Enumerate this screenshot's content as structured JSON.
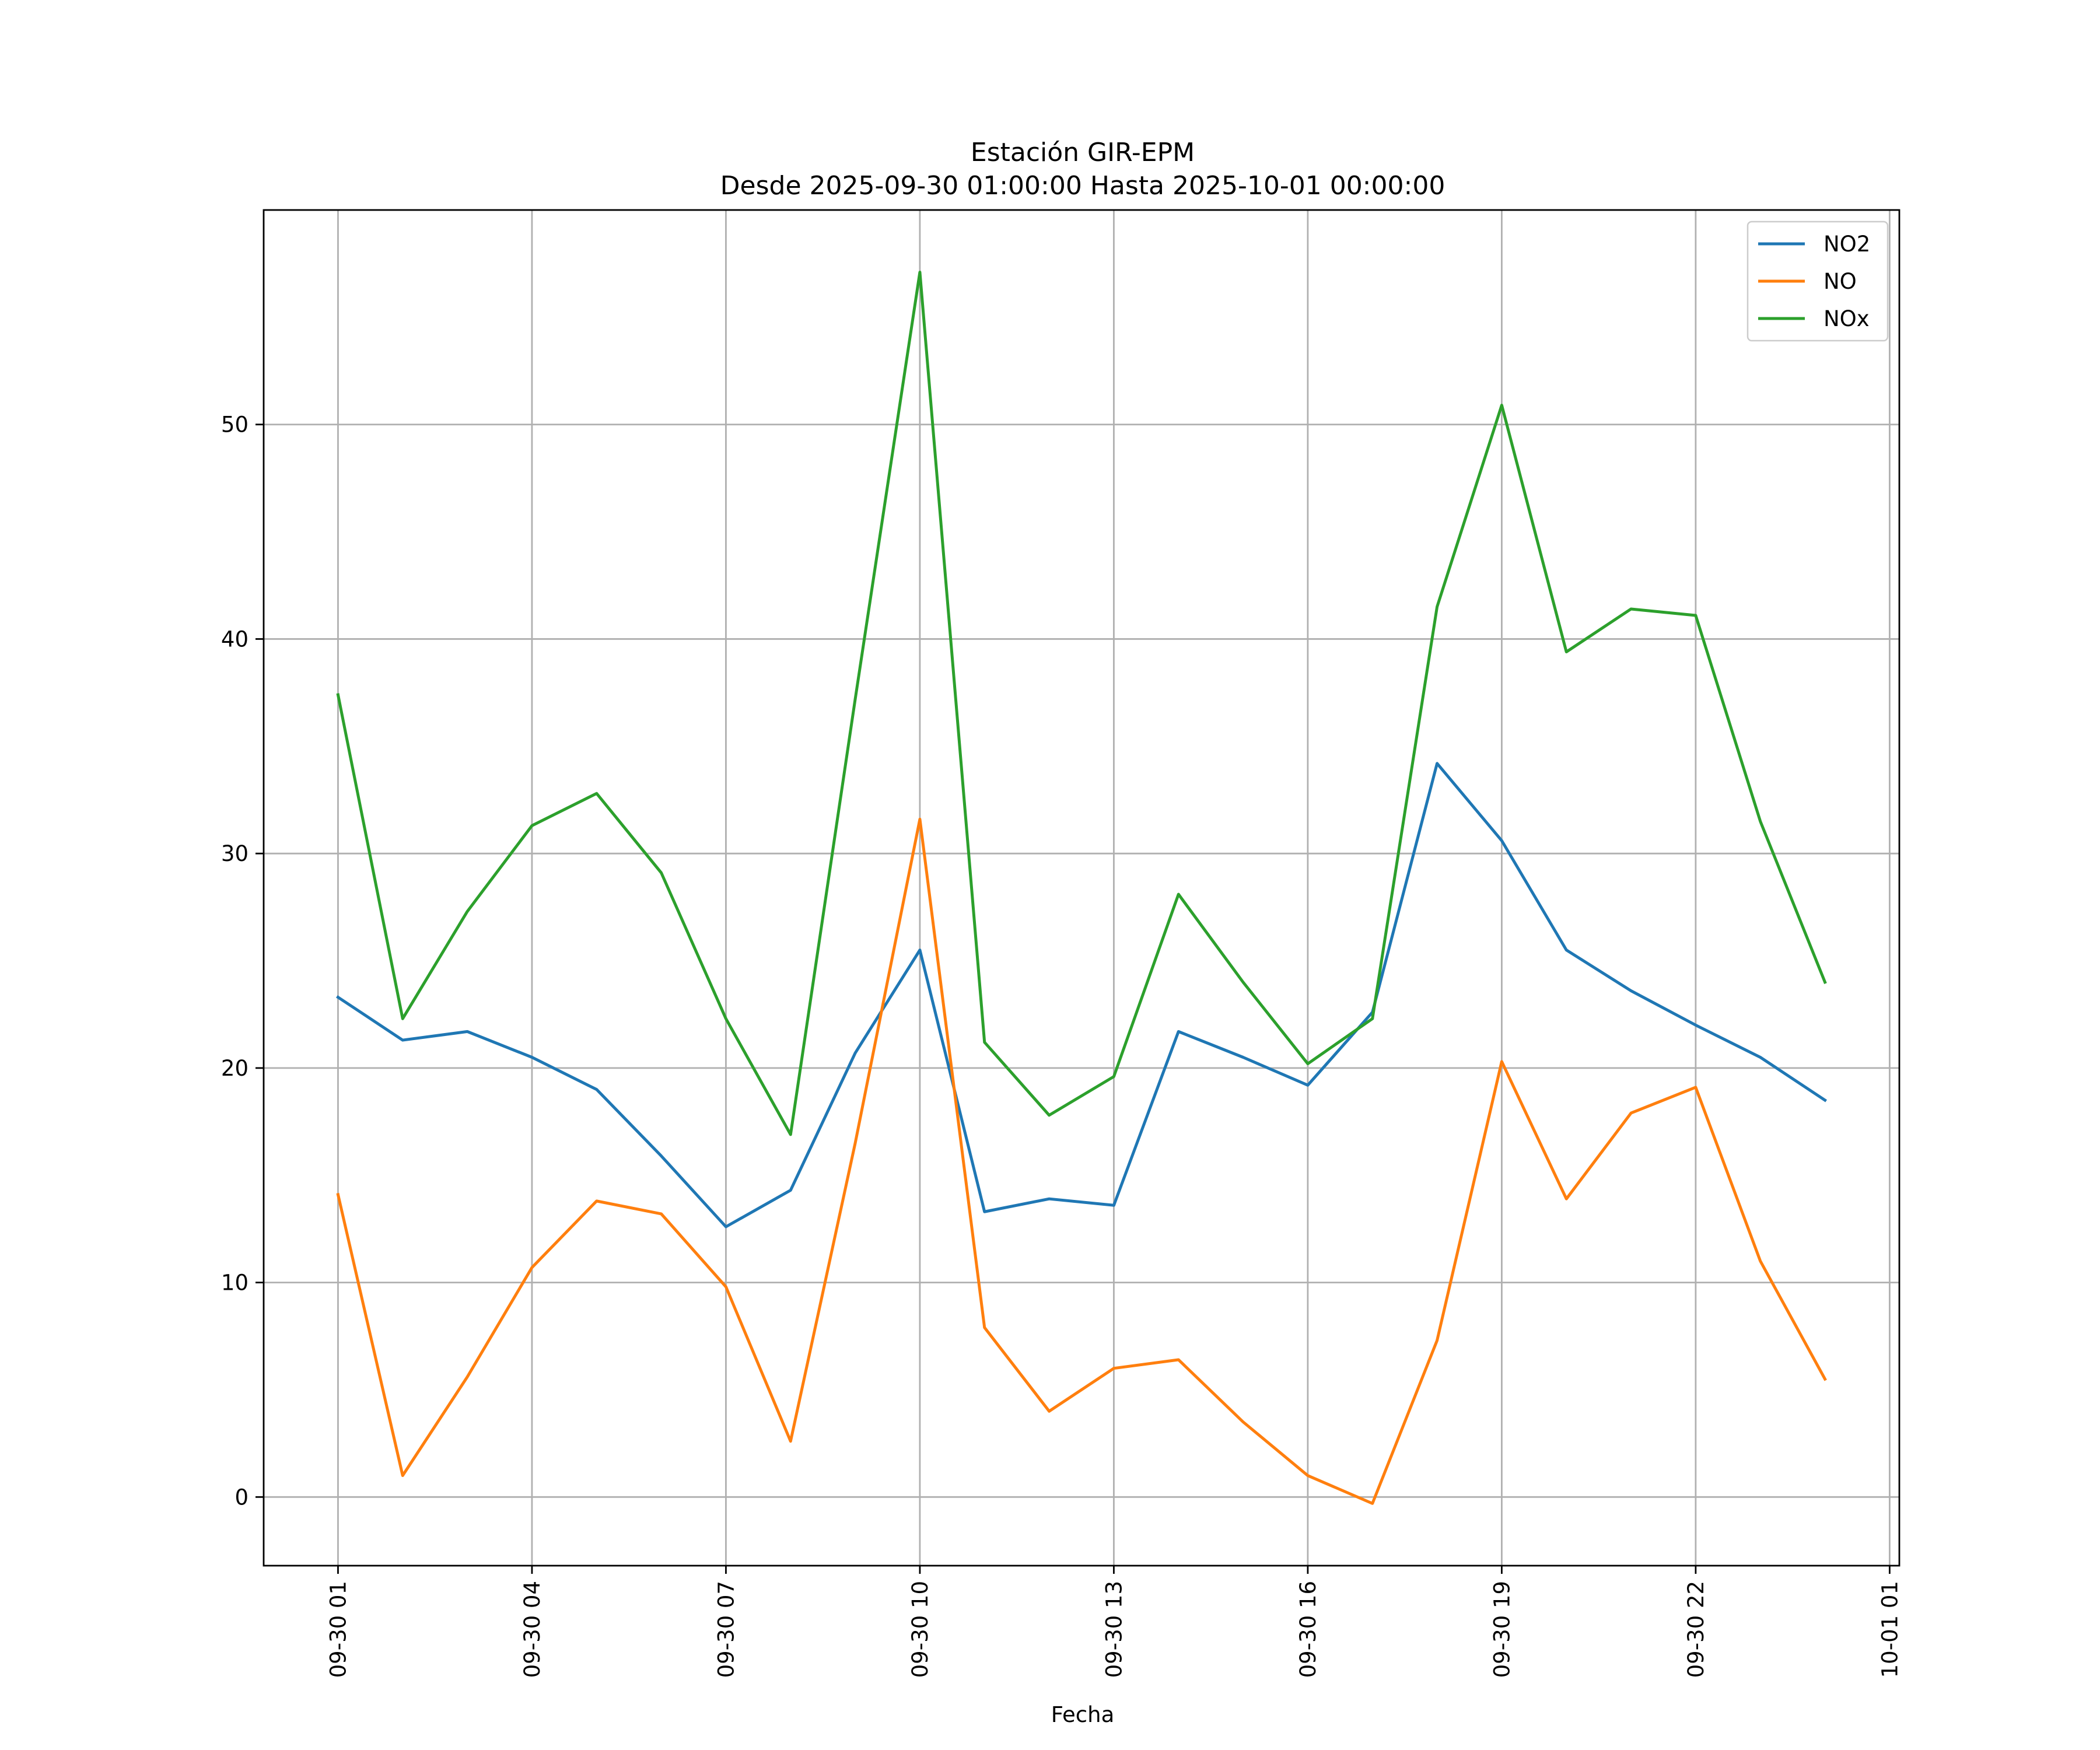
{
  "chart_data": {
    "type": "line",
    "title": "Estación GIR-EPM",
    "subtitle": "Desde 2025-09-30 01:00:00 Hasta 2025-10-01 00:00:00",
    "xlabel": "Fecha",
    "ylabel": "",
    "x_start": "2025-09-30 01:00",
    "x_step_hours": 1,
    "x": [
      "2025-09-30 01:00",
      "2025-09-30 02:00",
      "2025-09-30 03:00",
      "2025-09-30 04:00",
      "2025-09-30 05:00",
      "2025-09-30 06:00",
      "2025-09-30 07:00",
      "2025-09-30 08:00",
      "2025-09-30 09:00",
      "2025-09-30 10:00",
      "2025-09-30 11:00",
      "2025-09-30 12:00",
      "2025-09-30 13:00",
      "2025-09-30 14:00",
      "2025-09-30 15:00",
      "2025-09-30 16:00",
      "2025-09-30 17:00",
      "2025-09-30 18:00",
      "2025-09-30 19:00",
      "2025-09-30 20:00",
      "2025-09-30 21:00",
      "2025-09-30 22:00",
      "2025-09-30 23:00",
      "2025-10-01 00:00"
    ],
    "x_tick_labels": [
      "09-30 01",
      "09-30 04",
      "09-30 07",
      "09-30 10",
      "09-30 13",
      "09-30 16",
      "09-30 19",
      "09-30 22",
      "10-01 01"
    ],
    "x_tick_hours": [
      0,
      3,
      6,
      9,
      12,
      15,
      18,
      21,
      24
    ],
    "x_range_hours": [
      -1.15,
      24.15
    ],
    "y_ticks": [
      0,
      10,
      20,
      30,
      40,
      50
    ],
    "y_tick_labels": [
      "0",
      "10",
      "20",
      "30",
      "40",
      "50"
    ],
    "ylim": [
      -3.2,
      60.0
    ],
    "grid": true,
    "legend_position": "upper right",
    "series": [
      {
        "name": "NO2",
        "color": "#1f77b4",
        "values": [
          23.3,
          21.3,
          21.7,
          20.5,
          19.0,
          15.9,
          12.6,
          14.3,
          20.7,
          25.5,
          13.3,
          13.9,
          13.6,
          21.7,
          20.5,
          19.2,
          22.6,
          34.2,
          30.6,
          25.5,
          23.6,
          22.0,
          20.5,
          18.5
        ]
      },
      {
        "name": "NO",
        "color": "#ff7f0e",
        "values": [
          14.1,
          1.0,
          5.6,
          10.7,
          13.8,
          13.2,
          9.8,
          2.6,
          16.5,
          31.6,
          7.9,
          4.0,
          6.0,
          6.4,
          3.5,
          1.0,
          -0.3,
          7.3,
          20.3,
          13.9,
          17.9,
          19.1,
          11.0,
          5.5
        ]
      },
      {
        "name": "NOx",
        "color": "#2ca02c",
        "values": [
          37.4,
          22.3,
          27.3,
          31.3,
          32.8,
          29.1,
          22.3,
          16.9,
          37.2,
          57.1,
          21.2,
          17.8,
          19.6,
          28.1,
          24.0,
          20.2,
          22.3,
          41.5,
          50.9,
          39.4,
          41.4,
          41.1,
          31.5,
          24.0
        ]
      }
    ]
  }
}
